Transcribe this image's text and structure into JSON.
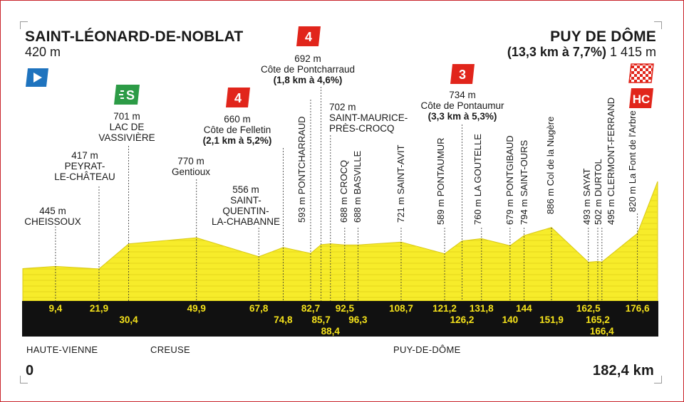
{
  "start": {
    "name": "SAINT-LÉONARD-DE-NOBLAT",
    "altitude": "420 m"
  },
  "finish": {
    "name": "PUY DE DÔME",
    "climb_stats": "(13,3 km à 7,7%)",
    "altitude": "1 415 m"
  },
  "climbs": {
    "felletin": {
      "category": "4",
      "altitude": "660 m",
      "name": "Côte de Felletin",
      "stats": "(2,1 km à 5,2%)"
    },
    "pontcharraud": {
      "category": "4",
      "altitude": "692 m",
      "name": "Côte de Pontcharraud",
      "stats": "(1,8 km à 4,6%)"
    },
    "pontaumur": {
      "category": "3",
      "altitude": "734 m",
      "name": "Côte de Pontaumur",
      "stats": "(3,3 km à 5,3%)"
    },
    "puy_de_dome": {
      "category": "HC"
    }
  },
  "sprint": {
    "symbol": "S"
  },
  "places_horizontal": [
    {
      "alt": "445 m",
      "lines": [
        "CHEISSOUX"
      ]
    },
    {
      "alt": "417 m",
      "lines": [
        "PEYRAT-",
        "LE-CHÂTEAU"
      ]
    },
    {
      "alt": "701 m",
      "lines": [
        "LAC DE",
        "VASSIVIÈRE"
      ]
    },
    {
      "alt": "770 m",
      "lines": [
        "Gentioux"
      ]
    },
    {
      "alt": "556 m",
      "lines": [
        "SAINT-",
        "QUENTIN-",
        "LA-CHABANNE"
      ]
    },
    {
      "alt": "702 m",
      "lines": [
        "SAINT-MAURICE-",
        "PRÈS-CROCQ"
      ]
    }
  ],
  "places_vertical": [
    "593 m PONTCHARRAUD",
    "688 m CROCQ",
    "688 m BASVILLE",
    "721 m SAINT-AVIT",
    "589 m PONTAUMUR",
    "760 m LA GOUTELLE",
    "679 m PONTGIBAUD",
    "794 m SAINT-OURS",
    "886 m Col de la Nugère",
    "493 m SAYAT",
    "502 m DURTOL",
    "495 m CLERMONT-FERRAND",
    "820 m La Font de l'Arbre"
  ],
  "km_markers": [
    "9,4",
    "21,9",
    "30,4",
    "49,9",
    "67,8",
    "74,8",
    "82,7",
    "85,7",
    "88,4",
    "92,5",
    "96,3",
    "108,7",
    "121,2",
    "126,2",
    "131,8",
    "140",
    "144",
    "151,9",
    "162,5",
    "165,2",
    "166,4",
    "176,6"
  ],
  "regions": [
    "HAUTE-VIENNE",
    "CREUSE",
    "PUY-DE-DÔME"
  ],
  "distance": {
    "start": "0",
    "total": "182,4 km"
  },
  "chart_data": {
    "type": "area",
    "x_unit": "km",
    "y_unit": "m",
    "x": [
      0,
      9.4,
      21.9,
      30.4,
      49.9,
      67.8,
      74.8,
      82.7,
      85.7,
      88.4,
      92.5,
      96.3,
      108.7,
      121.2,
      126.2,
      131.8,
      140,
      144,
      151.9,
      162.5,
      165.2,
      166.4,
      176.6,
      182.4
    ],
    "y": [
      420,
      445,
      417,
      701,
      770,
      556,
      660,
      593,
      692,
      702,
      688,
      688,
      721,
      589,
      734,
      760,
      679,
      794,
      886,
      493,
      502,
      495,
      820,
      1415
    ],
    "xlim": [
      0,
      182.4
    ],
    "colors": {
      "profile": "#f7ec2a",
      "km_band": "#111111",
      "km_text": "#f5e21b",
      "climb_badge": "#e1251b",
      "sprint_badge": "#2c9b46",
      "start_badge": "#1e73be"
    }
  }
}
